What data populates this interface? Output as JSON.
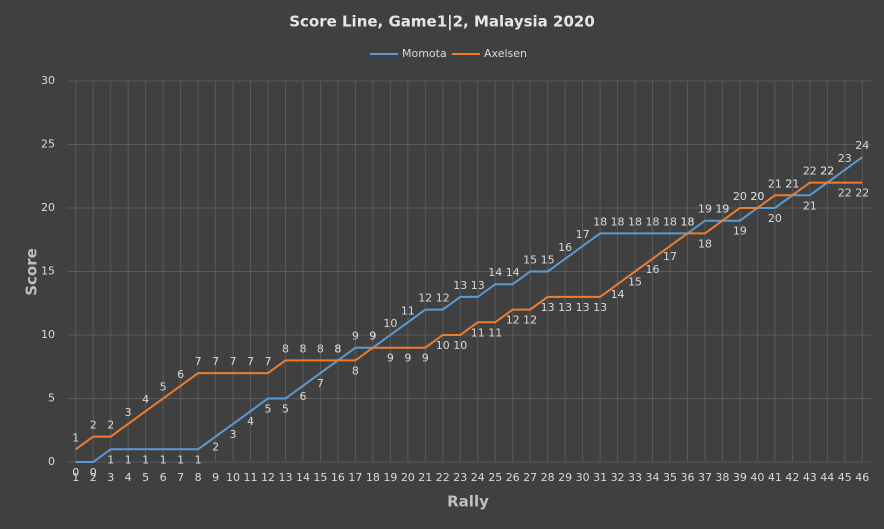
{
  "chart_data": {
    "type": "line",
    "title": "Score Line, Game1|2, Malaysia 2020",
    "x_label": "Rally",
    "y_label": "Score",
    "categories": [
      1,
      2,
      3,
      4,
      5,
      6,
      7,
      8,
      9,
      10,
      11,
      12,
      13,
      14,
      15,
      16,
      17,
      18,
      19,
      20,
      21,
      22,
      23,
      24,
      25,
      26,
      27,
      28,
      29,
      30,
      31,
      32,
      33,
      34,
      35,
      36,
      37,
      38,
      39,
      40,
      41,
      42,
      43,
      44,
      45,
      46
    ],
    "series": [
      {
        "name": "Momota",
        "color": "#5b9bd5",
        "values": [
          0,
          0,
          1,
          1,
          1,
          1,
          1,
          1,
          2,
          3,
          4,
          5,
          5,
          6,
          7,
          8,
          9,
          9,
          10,
          11,
          12,
          12,
          13,
          13,
          14,
          14,
          15,
          15,
          16,
          17,
          18,
          18,
          18,
          18,
          18,
          18,
          19,
          19,
          19,
          20,
          20,
          21,
          21,
          22,
          23,
          24
        ]
      },
      {
        "name": "Axelsen",
        "color": "#ed7d31",
        "values": [
          1,
          2,
          2,
          3,
          4,
          5,
          6,
          7,
          7,
          7,
          7,
          7,
          8,
          8,
          8,
          8,
          8,
          9,
          9,
          9,
          9,
          10,
          10,
          11,
          11,
          12,
          12,
          13,
          13,
          13,
          13,
          14,
          15,
          16,
          17,
          18,
          18,
          19,
          20,
          20,
          21,
          21,
          22,
          22,
          22,
          22
        ]
      }
    ],
    "ylim": [
      0,
      30
    ],
    "yticks": [
      0,
      5,
      10,
      15,
      20,
      25,
      30
    ],
    "grid": true,
    "legend": "top"
  }
}
